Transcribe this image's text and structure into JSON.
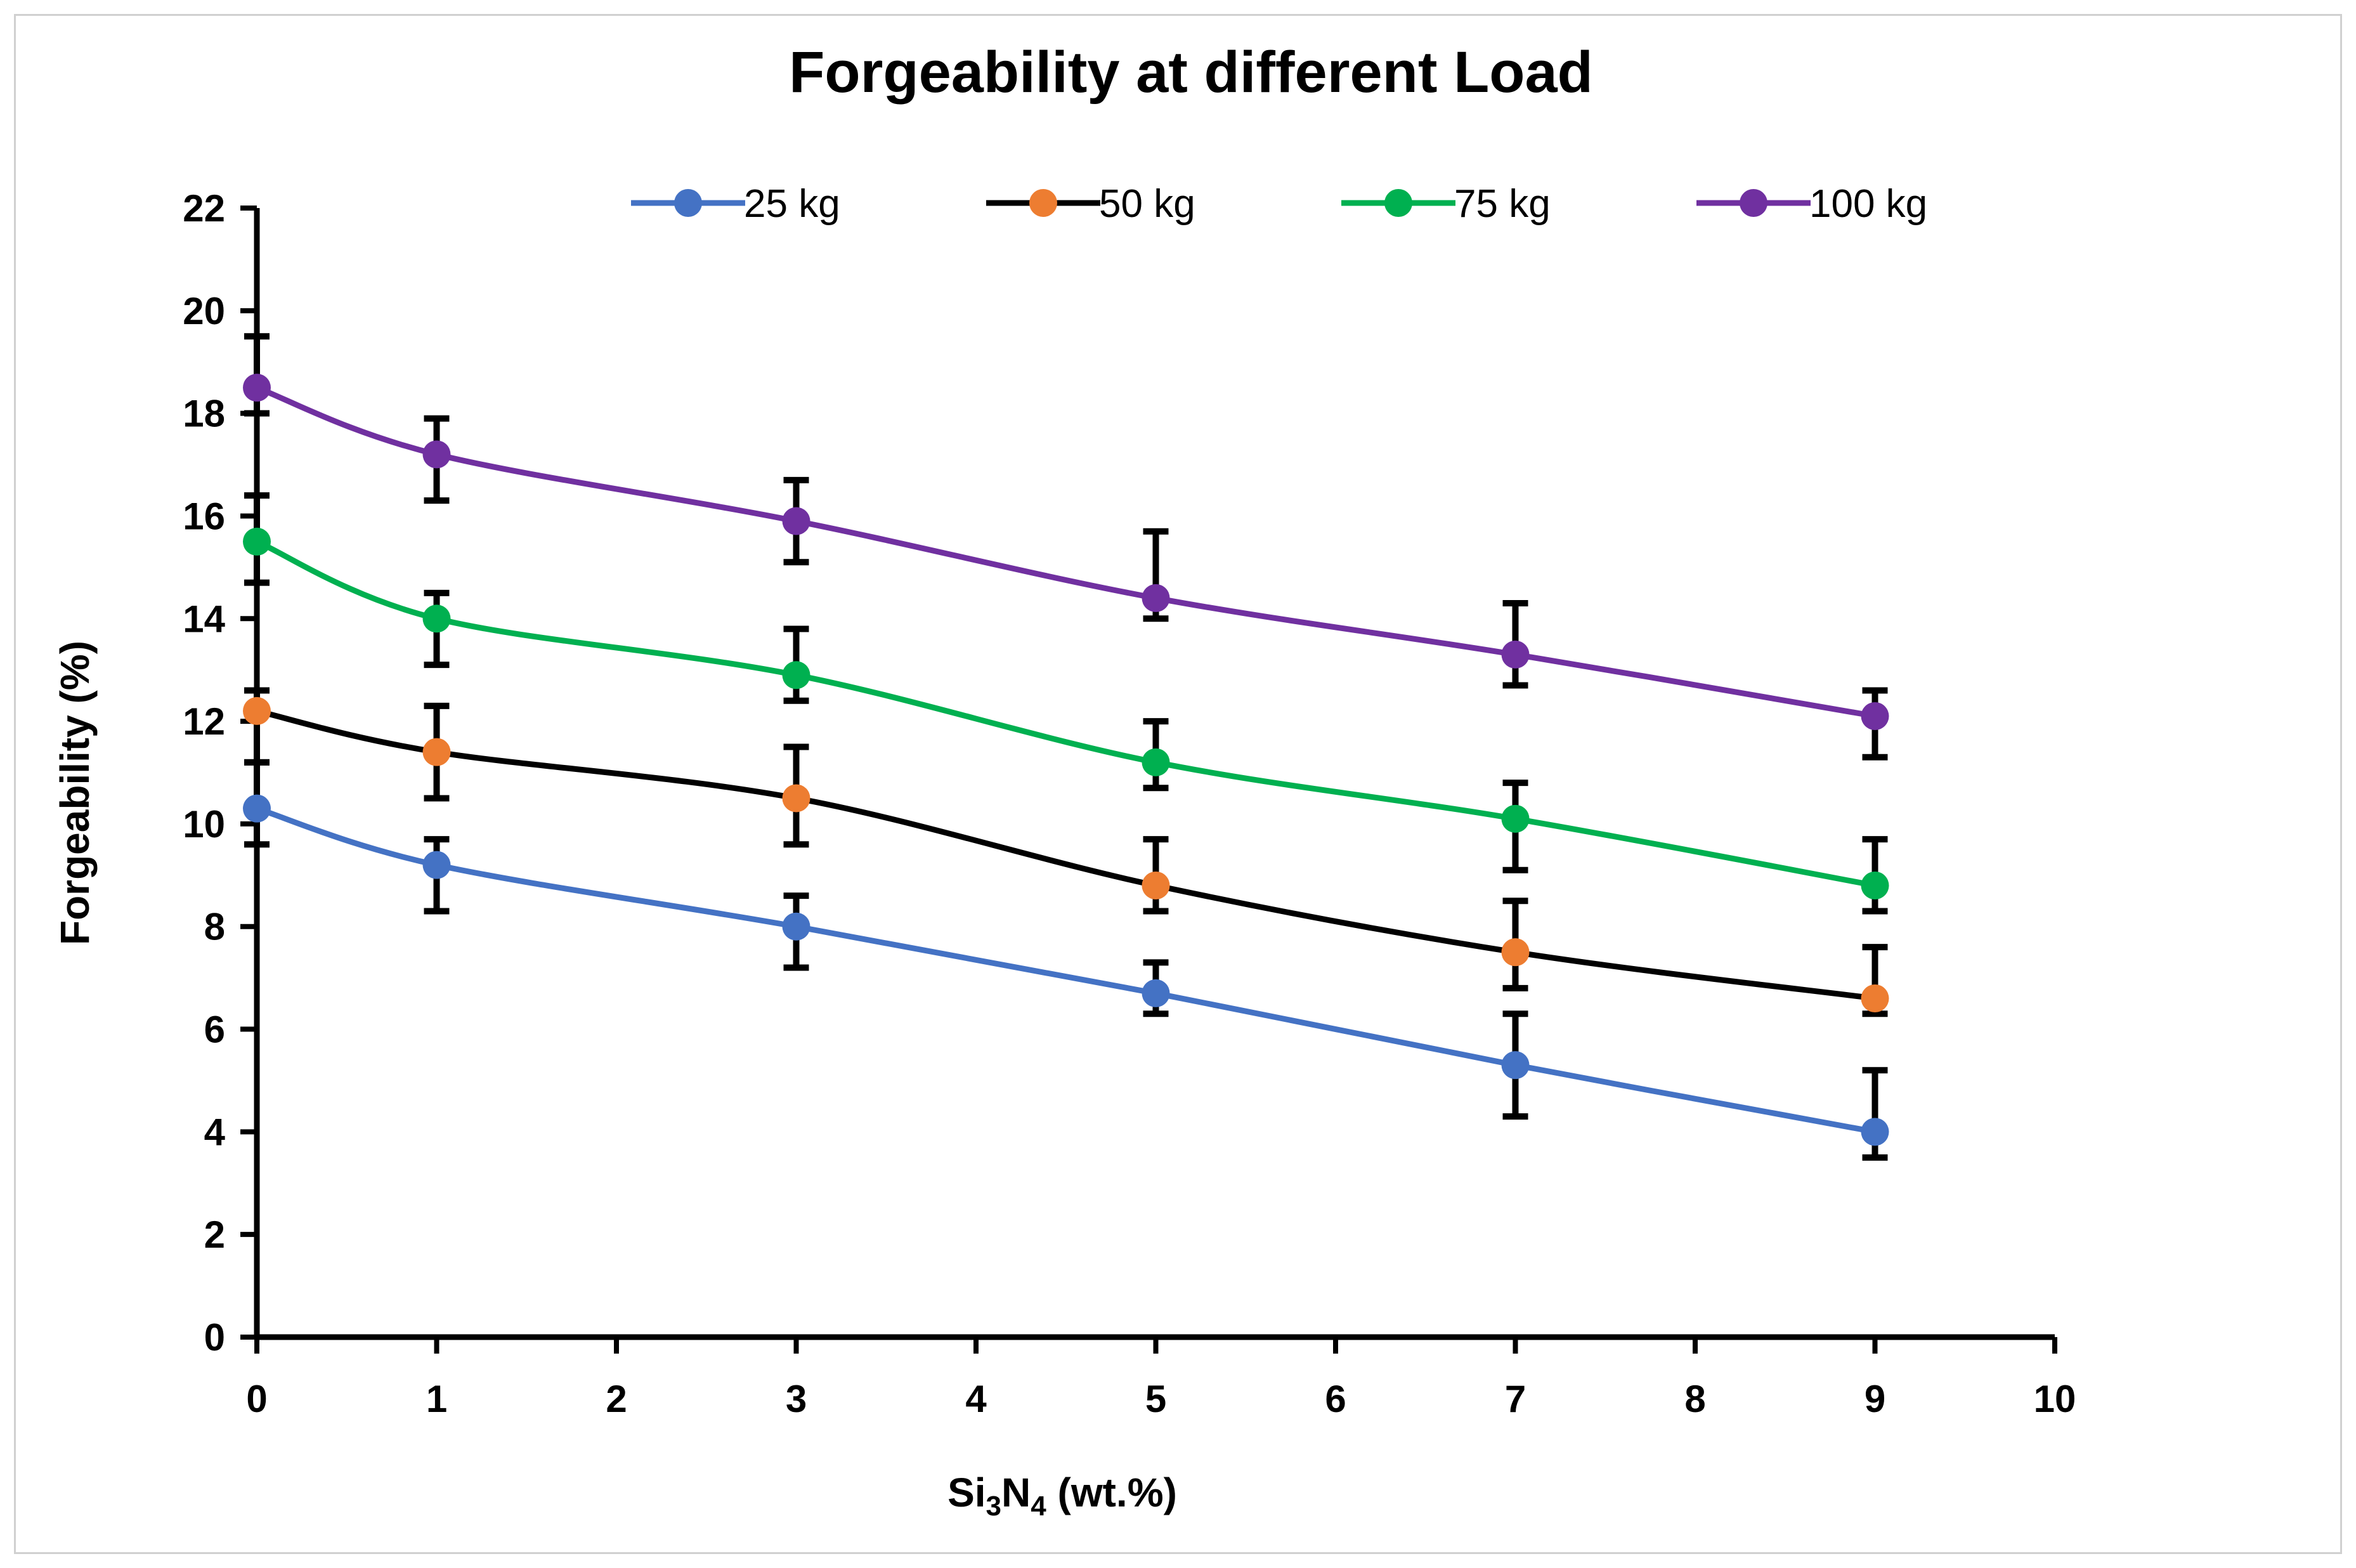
{
  "chart_data": {
    "type": "line",
    "title": "Forgeability at different Load",
    "xlabel": {
      "base": "Si",
      "sub1": "3",
      "mid": "N",
      "sub2": "4",
      "rest": " (wt.%)"
    },
    "ylabel": "Forgeability (%)",
    "xlim": [
      0,
      10
    ],
    "ylim": [
      0,
      22
    ],
    "x_ticks": [
      0,
      1,
      2,
      3,
      4,
      5,
      6,
      7,
      8,
      9,
      10
    ],
    "y_ticks": [
      0,
      2,
      4,
      6,
      8,
      10,
      12,
      14,
      16,
      18,
      20,
      22
    ],
    "x": [
      0,
      1,
      3,
      5,
      7,
      9
    ],
    "legend_position": "top",
    "series": [
      {
        "name": "25 kg",
        "color": "#4472C4",
        "marker_color": "#4472C4",
        "values": [
          10.3,
          9.2,
          8.0,
          6.7,
          5.3,
          4.0
        ],
        "err_plus": [
          0.9,
          0.5,
          0.6,
          0.6,
          1.0,
          1.2
        ],
        "err_minus": [
          0.7,
          0.9,
          0.8,
          0.4,
          1.0,
          0.5
        ]
      },
      {
        "name": "50 kg",
        "color": "#000000",
        "marker_color": "#ED7D31",
        "values": [
          12.2,
          11.4,
          10.5,
          8.8,
          7.5,
          6.6
        ],
        "err_plus": [
          0.4,
          0.9,
          1.0,
          0.9,
          1.0,
          1.0
        ],
        "err_minus": [
          1.0,
          0.9,
          0.9,
          0.5,
          0.7,
          0.3
        ]
      },
      {
        "name": "75 kg",
        "color": "#00B050",
        "marker_color": "#00B050",
        "values": [
          15.5,
          14.0,
          12.9,
          11.2,
          10.1,
          8.8
        ],
        "err_plus": [
          0.9,
          0.5,
          0.9,
          0.8,
          0.7,
          0.9
        ],
        "err_minus": [
          0.8,
          0.9,
          0.5,
          0.5,
          1.0,
          0.5
        ]
      },
      {
        "name": "100 kg",
        "color": "#7030A0",
        "marker_color": "#7030A0",
        "values": [
          18.5,
          17.2,
          15.9,
          14.4,
          13.3,
          12.1
        ],
        "err_plus": [
          1.0,
          0.7,
          0.8,
          1.3,
          1.0,
          0.5
        ],
        "err_minus": [
          0.5,
          0.9,
          0.8,
          0.4,
          0.6,
          0.8
        ]
      }
    ]
  }
}
